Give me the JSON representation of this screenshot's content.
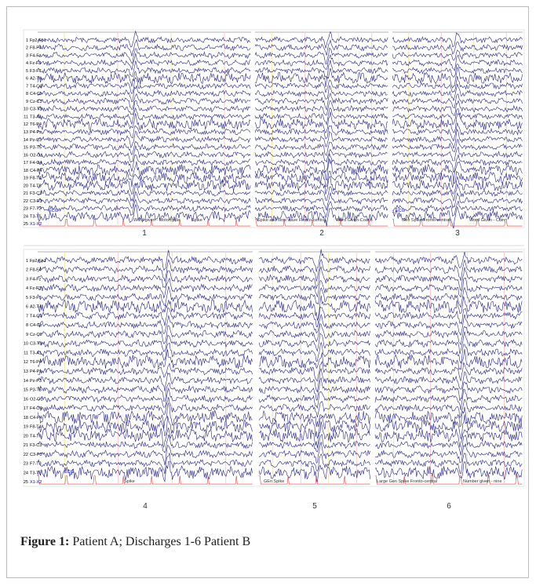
{
  "figure": {
    "channels": [
      {
        "n": 1,
        "name": "Fp2-Fp1"
      },
      {
        "n": 2,
        "name": "F8-F4"
      },
      {
        "n": 3,
        "name": "F4-Fz"
      },
      {
        "n": 4,
        "name": "Fz-F3"
      },
      {
        "n": 5,
        "name": "F3-F7"
      },
      {
        "n": 6,
        "name": "A2-T4"
      },
      {
        "n": 7,
        "name": "T4-C4"
      },
      {
        "n": 8,
        "name": "C4-Cz"
      },
      {
        "n": 9,
        "name": "Cz-C3"
      },
      {
        "n": 10,
        "name": "C3-T3"
      },
      {
        "n": 11,
        "name": "T3-A1"
      },
      {
        "n": 12,
        "name": "T6-P4"
      },
      {
        "n": 13,
        "name": "P4-Pz"
      },
      {
        "n": 14,
        "name": "Pz-P3"
      },
      {
        "n": 15,
        "name": "P3-T5"
      },
      {
        "n": 16,
        "name": "O2-O1"
      },
      {
        "n": 17,
        "name": "F4-C4"
      },
      {
        "n": 18,
        "name": "C4-P4"
      },
      {
        "n": 19,
        "name": "F8-T4"
      },
      {
        "n": 20,
        "name": "T4-T6"
      },
      {
        "n": 21,
        "name": "F3-C3"
      },
      {
        "n": 22,
        "name": "C3-P3"
      },
      {
        "n": 23,
        "name": "F7-T3"
      },
      {
        "n": 24,
        "name": "T3-T5"
      },
      {
        "n": 25,
        "name": "X1-X2"
      }
    ],
    "top_annotations": [
      {
        "text": "ECG"
      },
      {
        "text": "Word given - Motorcycle"
      },
      {
        "text": "Spike"
      },
      {
        "text": "Spike and slow wave Fronto-central"
      },
      {
        "text": "Word Given-Coach"
      },
      {
        "text": "ECG"
      },
      {
        "text": "Gen Spike Fronto-central"
      },
      {
        "text": "Word Given - Coin"
      }
    ],
    "bottom_annotations": [
      {
        "text": "ECG"
      },
      {
        "text": "Spike"
      },
      {
        "text": "GEn Spike"
      },
      {
        "text": "Large Gen Spike Fronto-central"
      },
      {
        "text": "Number given - nine"
      }
    ],
    "panel_labels": [
      "1",
      "2",
      "3",
      "4",
      "5",
      "6"
    ]
  },
  "caption": {
    "label": "Figure 1:",
    "text": "Patient A; Discharges 1-6 Patient B"
  }
}
